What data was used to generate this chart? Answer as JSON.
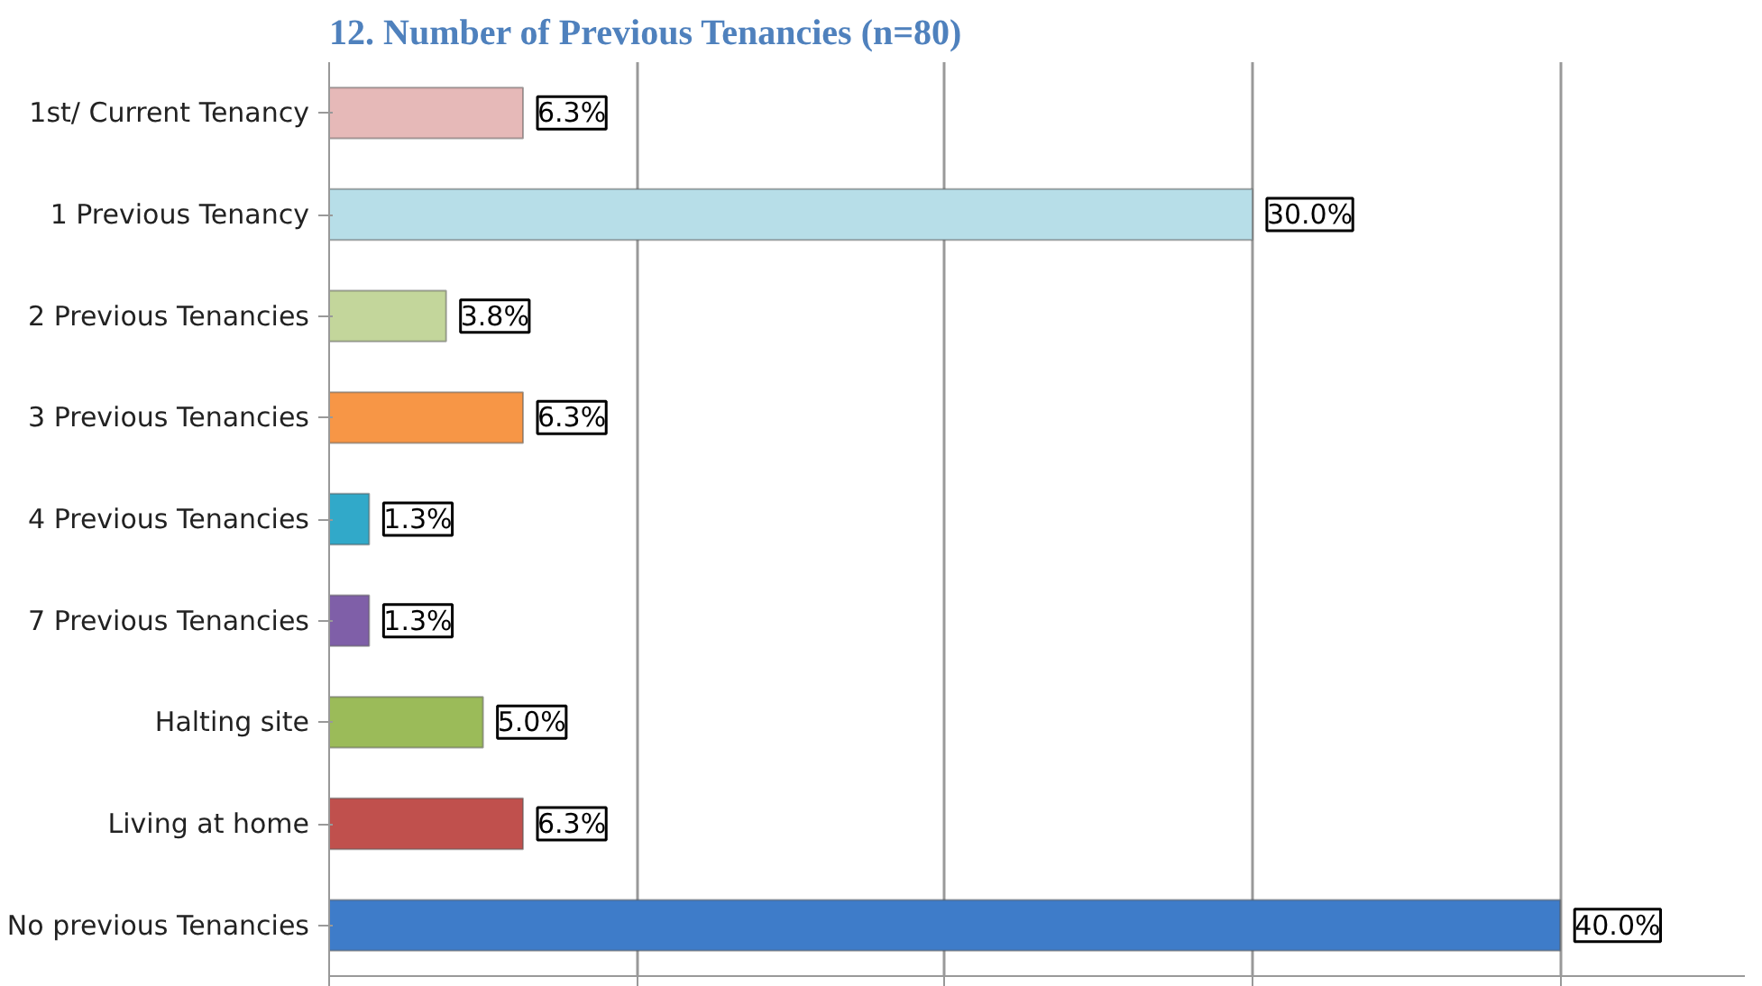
{
  "chart_data": {
    "type": "bar",
    "orientation": "horizontal",
    "title": "12. Number of Previous Tenancies (n=80)",
    "categories": [
      "1st/ Current Tenancy",
      "1 Previous Tenancy",
      "2 Previous Tenancies",
      "3 Previous Tenancies",
      "4 Previous Tenancies",
      "7 Previous Tenancies",
      "Halting site",
      "Living at home",
      "No previous Tenancies"
    ],
    "values": [
      6.3,
      30.0,
      3.8,
      6.3,
      1.3,
      1.3,
      5.0,
      6.3,
      40.0
    ],
    "value_labels": [
      "6.3%",
      "30.0%",
      "3.8%",
      "6.3%",
      "1.3%",
      "1.3%",
      "5.0%",
      "6.3%",
      "40.0%"
    ],
    "colors": [
      "#e6b9b8",
      "#b7dee8",
      "#c3d69b",
      "#f79646",
      "#31a9c9",
      "#7f5fa8",
      "#9bbb59",
      "#c0504d",
      "#3e7cc9"
    ],
    "xlim": [
      0,
      46
    ],
    "xticks": [
      {
        "value": 0,
        "label": null
      },
      {
        "value": 10,
        "label": null
      },
      {
        "value": 20,
        "label": null
      },
      {
        "value": 30,
        "label": null
      },
      {
        "value": 40,
        "label": null
      }
    ],
    "tick_labels": "y",
    "grid": "x"
  }
}
